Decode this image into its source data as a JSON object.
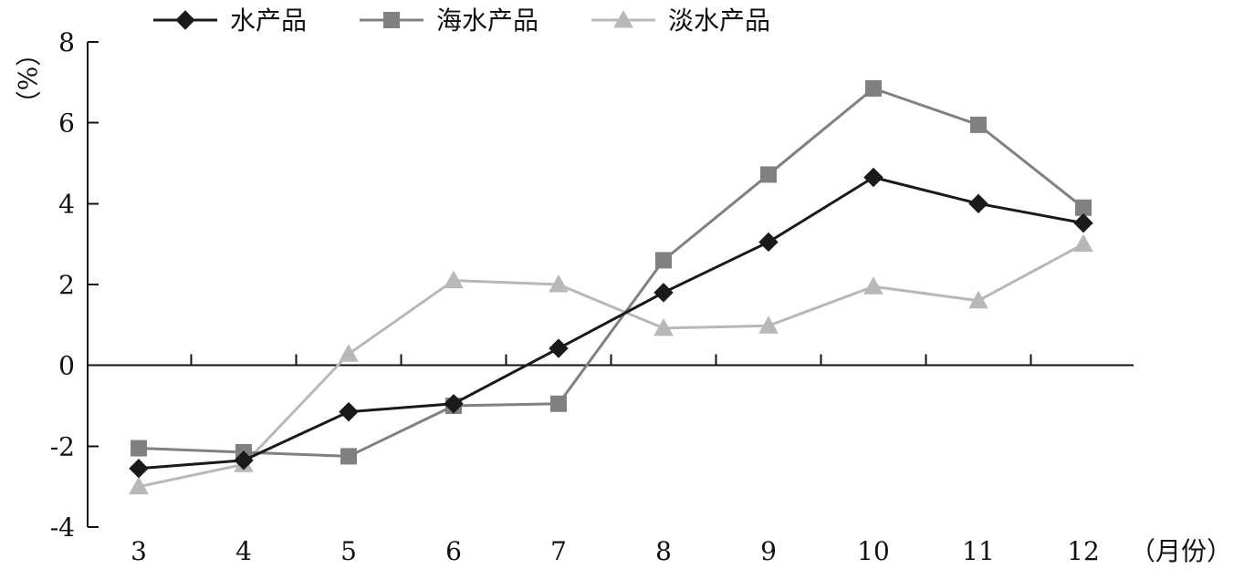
{
  "chart_data": {
    "type": "line",
    "x": [
      "3",
      "4",
      "5",
      "6",
      "7",
      "8",
      "9",
      "10",
      "11",
      "12"
    ],
    "series": [
      {
        "name": "水产品",
        "values": [
          -2.55,
          -2.35,
          -1.15,
          -0.95,
          0.42,
          1.8,
          3.05,
          4.65,
          4.0,
          3.52
        ],
        "color": "#1a1a1a",
        "marker": "diamond"
      },
      {
        "name": "海水产品",
        "values": [
          -2.05,
          -2.15,
          -2.25,
          -1.0,
          -0.95,
          2.6,
          4.72,
          6.85,
          5.95,
          3.9
        ],
        "color": "#808080",
        "marker": "square"
      },
      {
        "name": "淡水产品",
        "values": [
          -3.0,
          -2.45,
          0.28,
          2.1,
          2.0,
          0.92,
          0.98,
          1.95,
          1.6,
          3.0
        ],
        "color": "#b8b8b8",
        "marker": "triangle"
      }
    ],
    "title": "",
    "xlabel": "（月份）",
    "ylabel": "（%）",
    "ylim": [
      -4,
      8
    ],
    "yticks": [
      "-4",
      "-2",
      "0",
      "2",
      "4",
      "6",
      "8"
    ],
    "grid": false,
    "legend_position": "top-left"
  }
}
